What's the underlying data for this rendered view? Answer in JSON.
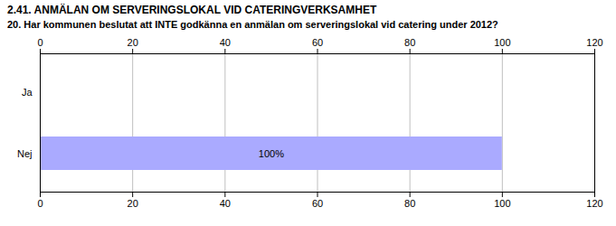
{
  "chart_data": {
    "type": "bar",
    "title": "2.41. ANMÄLAN OM SERVERINGSLOKAL VID CATERINGVERKSAMHET",
    "subtitle": "20. Har kommunen beslutat att INTE godkänna en anmälan om serveringslokal vid catering under 2012?",
    "orientation": "horizontal",
    "categories": [
      "Nej",
      "Ja"
    ],
    "values": [
      100,
      0
    ],
    "value_labels": [
      "100%",
      null
    ],
    "data_labels": true,
    "color": "#aaaaff",
    "xlim": [
      0,
      120
    ],
    "xticks": [
      0,
      20,
      40,
      60,
      80,
      100,
      120
    ],
    "grid": true
  }
}
